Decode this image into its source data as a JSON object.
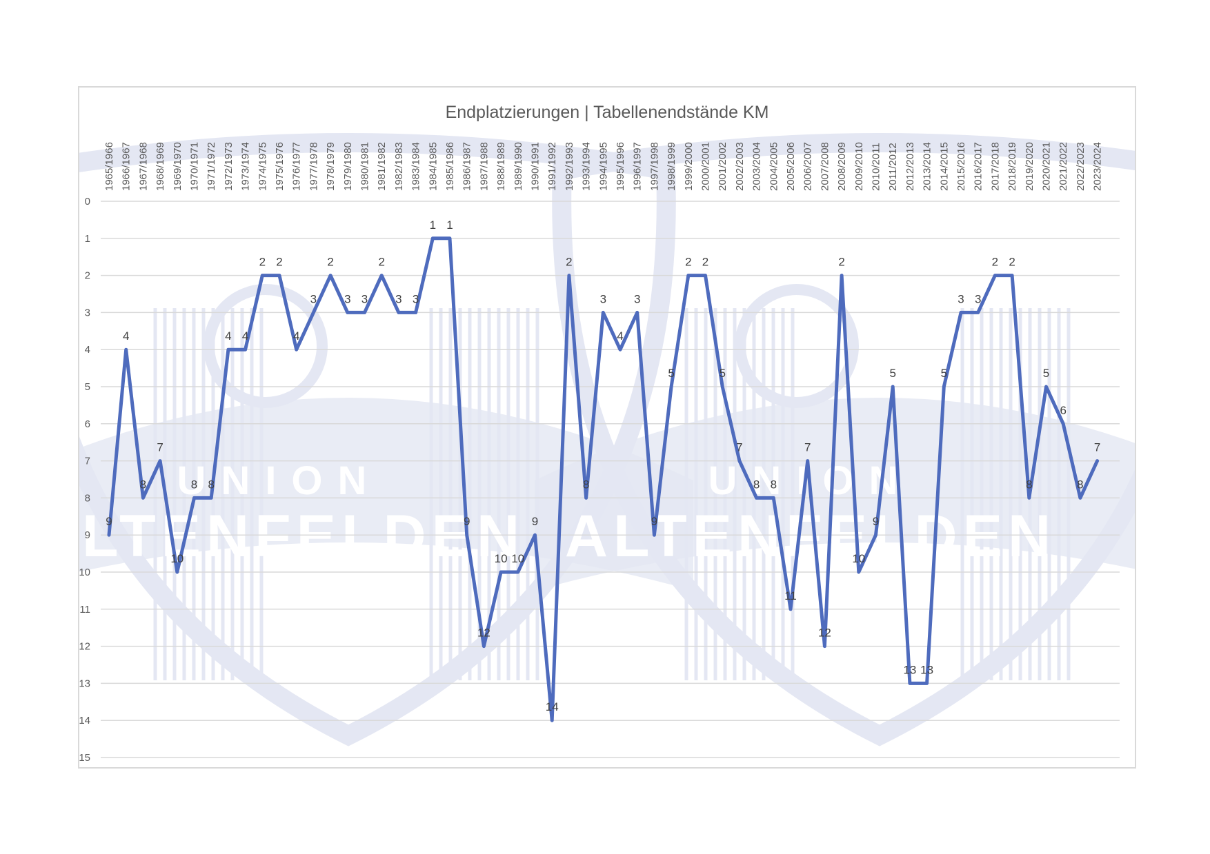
{
  "chart_data": {
    "type": "line",
    "title": "Endplatzierungen | Tabellenendstände KM",
    "xlabel": "",
    "ylabel": "",
    "y_axis_reversed": true,
    "ylim": [
      0,
      15
    ],
    "yticks": [
      0,
      1,
      2,
      3,
      4,
      5,
      6,
      7,
      8,
      9,
      10,
      11,
      12,
      13,
      14,
      15
    ],
    "grid": true,
    "legend": "none",
    "categories": [
      "1965/1966",
      "1966/1967",
      "1967/1968",
      "1968/1969",
      "1969/1970",
      "1970/1971",
      "1971/1972",
      "1972/1973",
      "1973/1974",
      "1974/1975",
      "1975/1976",
      "1976/1977",
      "1977/1978",
      "1978/1979",
      "1979/1980",
      "1980/1981",
      "1981/1982",
      "1982/1983",
      "1983/1984",
      "1984/1985",
      "1985/1986",
      "1986/1987",
      "1987/1988",
      "1988/1989",
      "1989/1990",
      "1990/1991",
      "1991/1992",
      "1992/1993",
      "1993/1994",
      "1994/1995",
      "1995/1996",
      "1996/1997",
      "1997/1998",
      "1998/1999",
      "1999/2000",
      "2000/2001",
      "2001/2002",
      "2002/2003",
      "2003/2004",
      "2004/2005",
      "2005/2006",
      "2006/2007",
      "2007/2008",
      "2008/2009",
      "2009/2010",
      "2010/2011",
      "2011/2012",
      "2012/2013",
      "2013/2014",
      "2014/2015",
      "2015/2016",
      "2016/2017",
      "2017/2018",
      "2018/2019",
      "2019/2020",
      "2020/2021",
      "2021/2022",
      "2022/2023",
      "2023/2024"
    ],
    "series": [
      {
        "values": [
          9,
          4,
          8,
          7,
          10,
          8,
          8,
          4,
          4,
          2,
          2,
          4,
          3,
          2,
          3,
          3,
          2,
          3,
          3,
          1,
          1,
          9,
          12,
          10,
          10,
          9,
          14,
          2,
          8,
          3,
          4,
          3,
          9,
          5,
          2,
          2,
          5,
          7,
          8,
          8,
          11,
          7,
          12,
          2,
          10,
          9,
          5,
          13,
          13,
          5,
          3,
          3,
          2,
          2,
          8,
          5,
          6,
          8,
          7
        ],
        "color": "#4e6bbd"
      }
    ],
    "watermark": {
      "text_line_1": "UNION",
      "text_line_2": "ALTENFELDEN",
      "color": "#e4e7f3"
    }
  }
}
